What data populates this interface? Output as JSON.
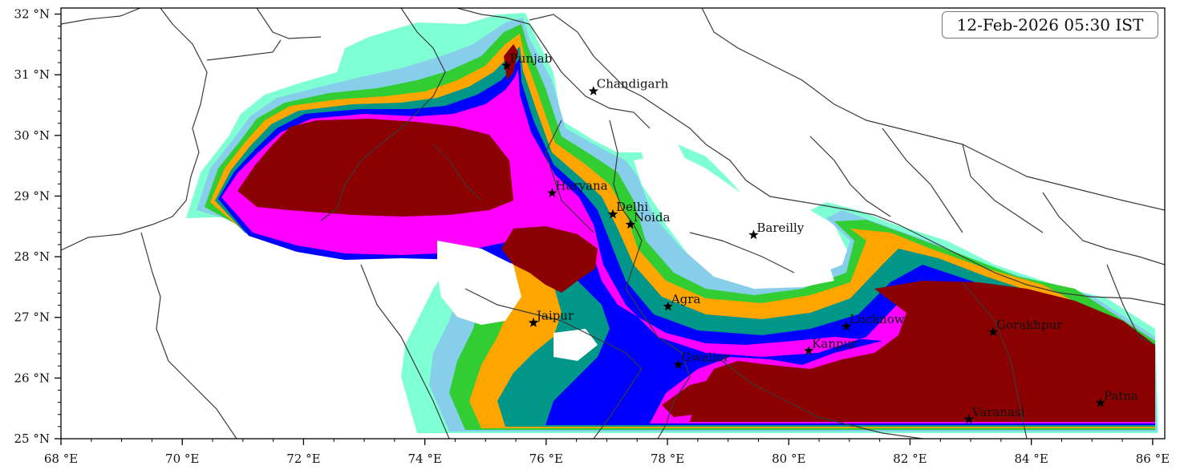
{
  "timestamp": "12-Feb-2026 05:30 IST",
  "axes": {
    "x_ticks": [
      {
        "value": 68,
        "label": "68 °E"
      },
      {
        "value": 70,
        "label": "70 °E"
      },
      {
        "value": 72,
        "label": "72 °E"
      },
      {
        "value": 74,
        "label": "74 °E"
      },
      {
        "value": 76,
        "label": "76 °E"
      },
      {
        "value": 78,
        "label": "78 °E"
      },
      {
        "value": 80,
        "label": "80 °E"
      },
      {
        "value": 82,
        "label": "82 °E"
      },
      {
        "value": 84,
        "label": "84 °E"
      },
      {
        "value": 86,
        "label": "86 °E"
      }
    ],
    "y_ticks": [
      {
        "value": 25,
        "label": "25 °N"
      },
      {
        "value": 26,
        "label": "26 °N"
      },
      {
        "value": 27,
        "label": "27 °N"
      },
      {
        "value": 28,
        "label": "28 °N"
      },
      {
        "value": 29,
        "label": "29 °N"
      },
      {
        "value": 30,
        "label": "30 °N"
      },
      {
        "value": 31,
        "label": "31 °N"
      },
      {
        "value": 32,
        "label": "32 °N"
      }
    ],
    "lon_range": [
      68,
      86.2
    ],
    "lat_range": [
      25,
      32.1
    ]
  },
  "colors": {
    "level1": "#7fffd4",
    "level2": "#87ceeb",
    "level3": "#32cd32",
    "level4": "#ffa500",
    "level5": "#009688",
    "level6": "#0000ff",
    "level7": "#ff00ff",
    "level8": "#8b0000"
  },
  "cities": [
    {
      "name": "Punjab",
      "lon": 75.35,
      "lat": 31.15
    },
    {
      "name": "Chandigarh",
      "lon": 76.78,
      "lat": 30.73
    },
    {
      "name": "Haryana",
      "lon": 76.1,
      "lat": 29.05
    },
    {
      "name": "Delhi",
      "lon": 77.1,
      "lat": 28.7
    },
    {
      "name": "Noida",
      "lon": 77.39,
      "lat": 28.53
    },
    {
      "name": "Bareilly",
      "lon": 79.42,
      "lat": 28.36
    },
    {
      "name": "Agra",
      "lon": 78.01,
      "lat": 27.18
    },
    {
      "name": "Jaipur",
      "lon": 75.79,
      "lat": 26.91
    },
    {
      "name": "Gwalior",
      "lon": 78.18,
      "lat": 26.22
    },
    {
      "name": "Lucknow",
      "lon": 80.95,
      "lat": 26.85
    },
    {
      "name": "Kanpur",
      "lon": 80.33,
      "lat": 26.45
    },
    {
      "name": "Gorakhpur",
      "lon": 83.37,
      "lat": 26.76
    },
    {
      "name": "Patna",
      "lon": 85.14,
      "lat": 25.59
    },
    {
      "name": "Varanasi",
      "lon": 82.97,
      "lat": 25.32
    }
  ]
}
